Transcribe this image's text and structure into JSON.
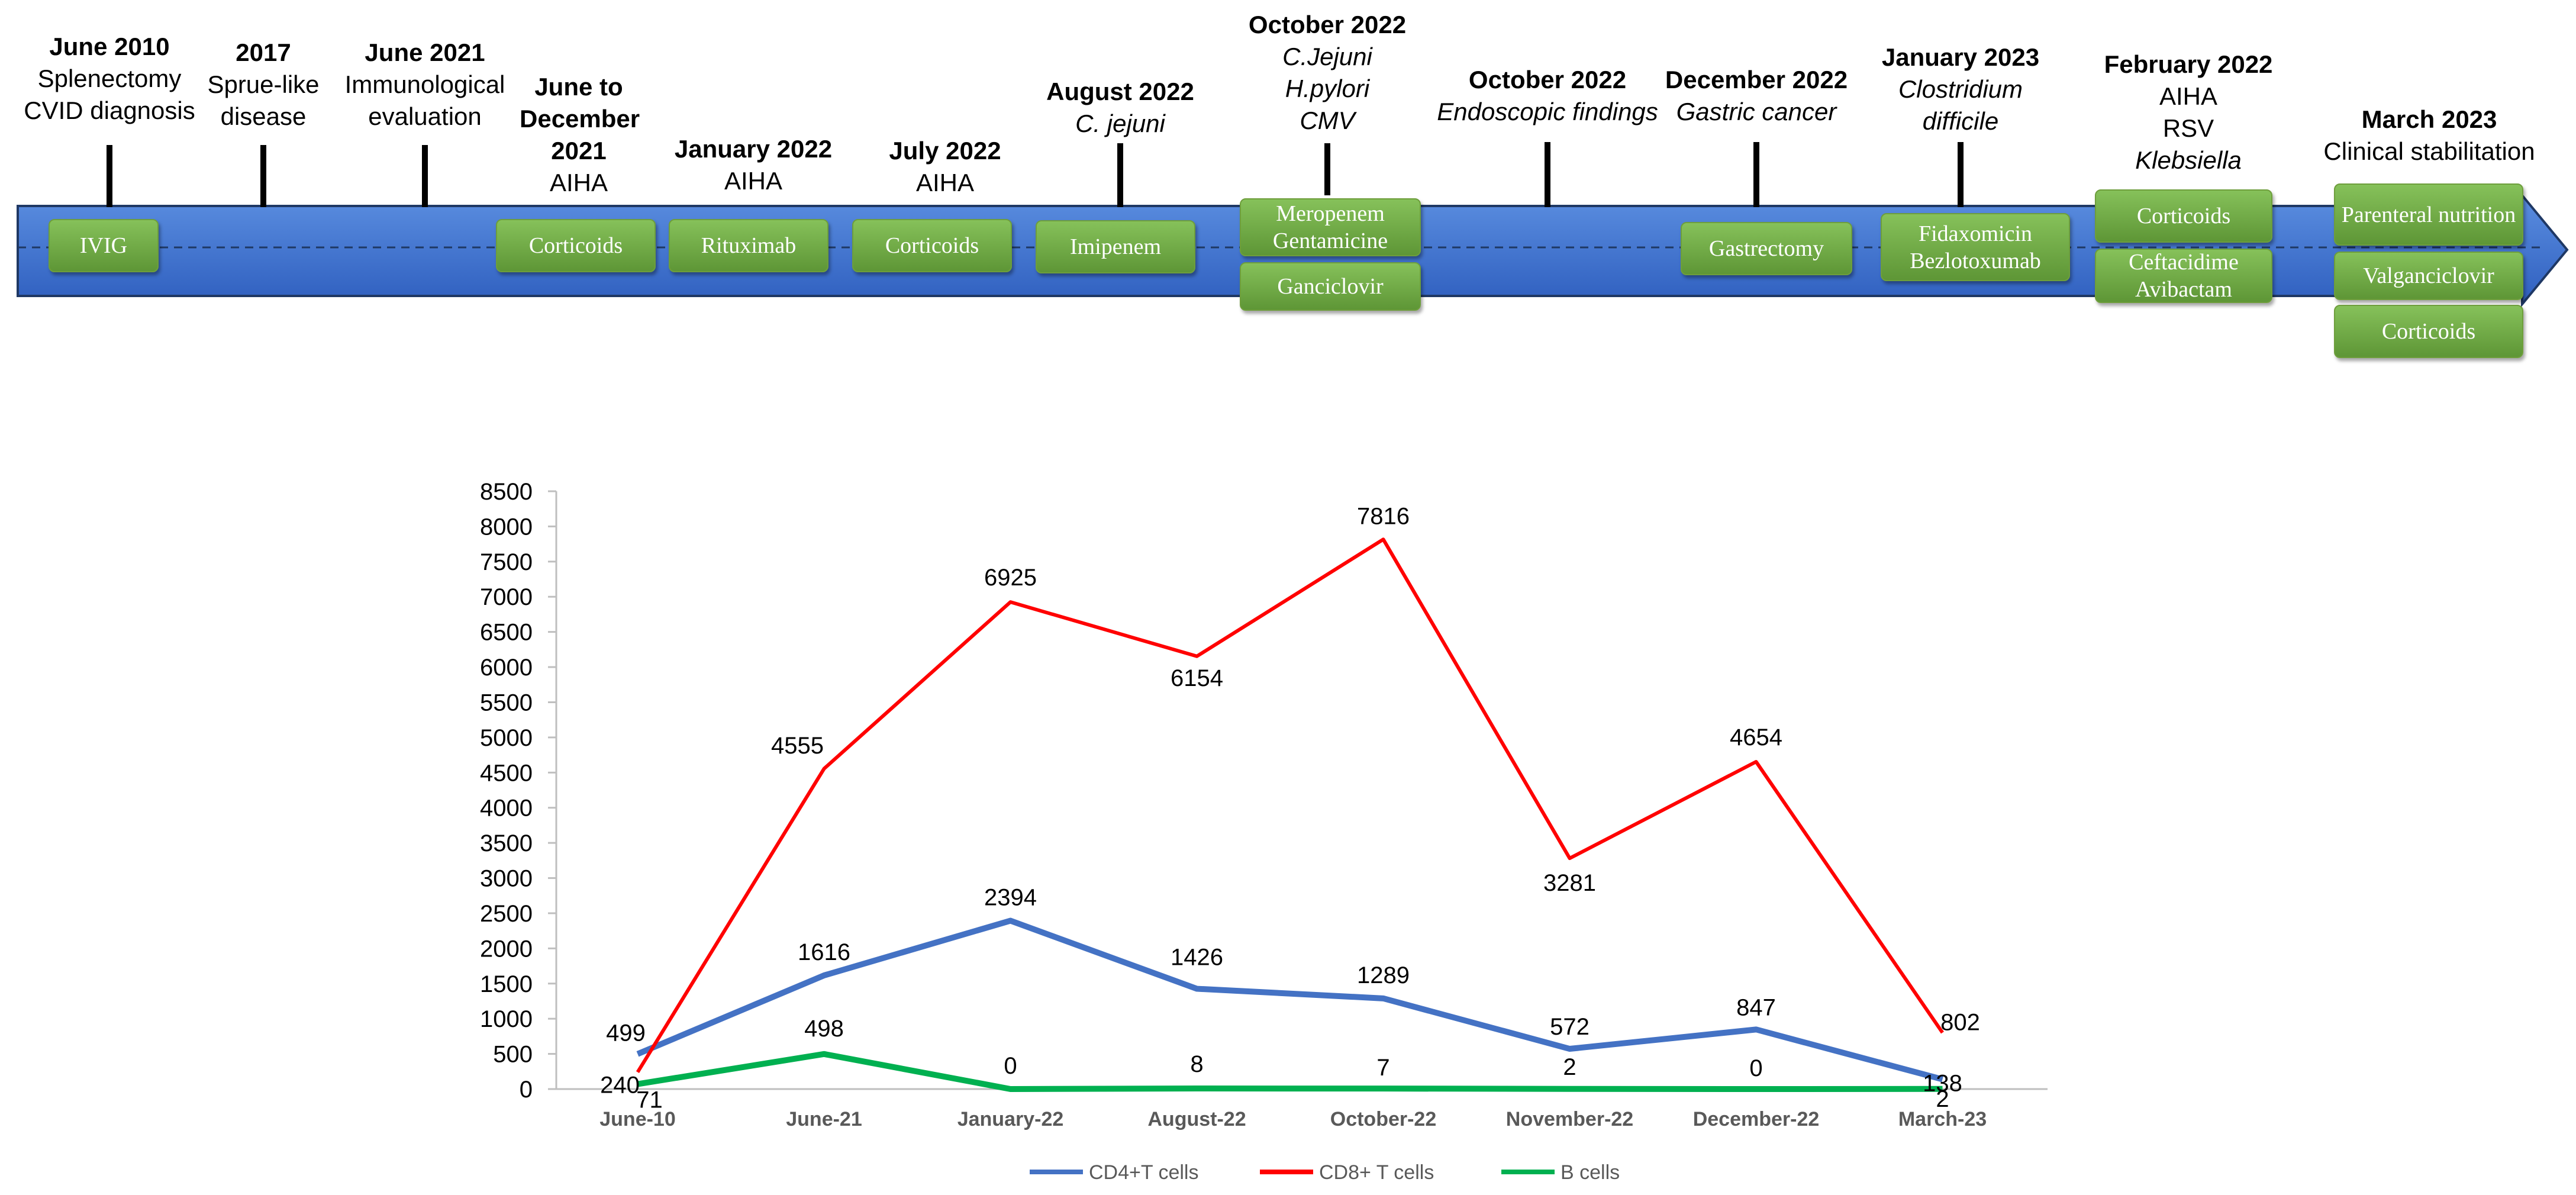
{
  "timeline": {
    "events": [
      {
        "date": "June 2010",
        "lines": [
          {
            "text": "Splenectomy"
          },
          {
            "text": "CVID diagnosis"
          }
        ]
      },
      {
        "date": "2017",
        "lines": [
          {
            "text": "Sprue-like"
          },
          {
            "text": "disease"
          }
        ]
      },
      {
        "date": "June 2021",
        "lines": [
          {
            "text": "Immunological"
          },
          {
            "text": "evaluation"
          }
        ]
      },
      {
        "date": "June to December 2021",
        "lines": [
          {
            "text": "AIHA"
          }
        ]
      },
      {
        "date": "January 2022",
        "lines": [
          {
            "text": "AIHA"
          }
        ]
      },
      {
        "date": "July 2022",
        "lines": [
          {
            "text": "AIHA"
          }
        ]
      },
      {
        "date": "August 2022",
        "lines": [
          {
            "text": "C. jejuni",
            "italic": true
          }
        ]
      },
      {
        "date": "October 2022",
        "lines": [
          {
            "text": "C.Jejuni",
            "italic": true
          },
          {
            "text": "H.pylori",
            "italic": true
          },
          {
            "text": "CMV",
            "italic": true
          }
        ]
      },
      {
        "date": "October 2022",
        "lines": [
          {
            "text": "Endoscopic findings",
            "italic": true
          }
        ]
      },
      {
        "date": "December 2022",
        "lines": [
          {
            "text": "Gastric cancer",
            "italic": true
          }
        ]
      },
      {
        "date": "January 2023",
        "lines": [
          {
            "text": "Clostridium",
            "italic": true
          },
          {
            "text": "difficile",
            "italic": true
          }
        ]
      },
      {
        "date": "February 2022",
        "lines": [
          {
            "text": "AIHA"
          },
          {
            "text": "RSV"
          },
          {
            "text": "Klebsiella",
            "italic": true
          }
        ]
      },
      {
        "date": "March 2023",
        "lines": [
          {
            "text": "Clinical stabilitation"
          }
        ]
      }
    ],
    "treatments": [
      "IVIG",
      "Corticoids",
      "Rituximab",
      "Corticoids",
      "Imipenem",
      "Meropenem Gentamicine",
      "Ganciclovir",
      "Gastrectomy",
      "Fidaxomicin Bezlotoxumab",
      "Corticoids",
      "Ceftacidime Avibactam",
      "Parenteral nutrition",
      "Valganciclovir",
      "Corticoids"
    ]
  },
  "chart_data": {
    "type": "line",
    "categories": [
      "June-10",
      "June-21",
      "January-22",
      "August-22",
      "October-22",
      "November-22",
      "December-22",
      "March-23"
    ],
    "series": [
      {
        "name": "CD4+T cells",
        "color": "#4472c4",
        "values": [
          499,
          1616,
          2394,
          1426,
          1289,
          572,
          847,
          138
        ]
      },
      {
        "name": "CD8+ T cells",
        "color": "#ff0000",
        "values": [
          240,
          4555,
          6925,
          6154,
          7816,
          3281,
          4654,
          802
        ]
      },
      {
        "name": "B cells",
        "color": "#00b050",
        "values": [
          71,
          498,
          0,
          8,
          7,
          2,
          0,
          2
        ]
      }
    ],
    "ylim": [
      0,
      8500
    ],
    "ytick_step": 500,
    "legend_position": "bottom",
    "title": "",
    "xlabel": "",
    "ylabel": ""
  }
}
